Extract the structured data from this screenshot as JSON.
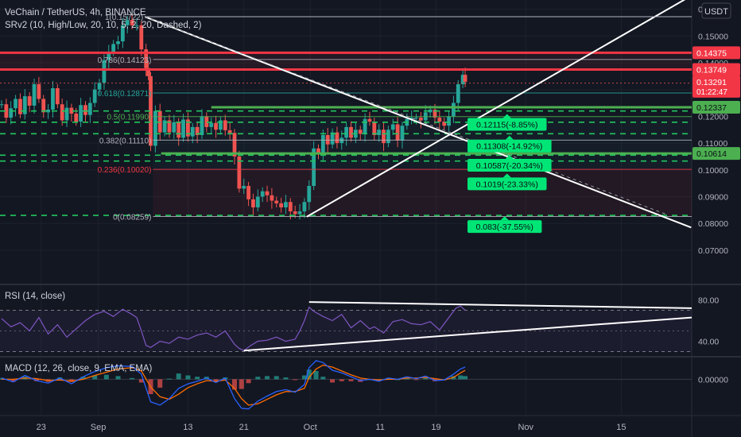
{
  "header": {
    "title": "VeChain / TetherUS, 4h, BINANCE",
    "indicator": "SRv2 (10, High/Low, 20, 10, 5, 2, 20, Dashed, 2)",
    "currency": "USDT"
  },
  "chart_data": [
    {
      "type": "candlestick",
      "name": "price",
      "price_axis_ticks": [
        "0.16000",
        "0.15000",
        "0.14000",
        "0.13000",
        "0.12000",
        "0.11000",
        "0.10000",
        "0.09000",
        "0.08000",
        "0.07000"
      ],
      "ylim": [
        0.0665,
        0.1665
      ],
      "time_axis_labels": [
        {
          "label": "23",
          "t": 34
        },
        {
          "label": "Sep",
          "t": 83
        },
        {
          "label": "13",
          "t": 160
        },
        {
          "label": "21",
          "t": 208
        },
        {
          "label": "Oct",
          "t": 265
        },
        {
          "label": "11",
          "t": 325
        },
        {
          "label": "19",
          "t": 373
        },
        {
          "label": "Nov",
          "t": 450
        },
        {
          "label": "15",
          "t": 532
        }
      ],
      "close_series": [
        [
          0,
          0.1245
        ],
        [
          4,
          0.1195
        ],
        [
          8,
          0.123
        ],
        [
          12,
          0.1265
        ],
        [
          16,
          0.1208
        ],
        [
          20,
          0.1275
        ],
        [
          24,
          0.124
        ],
        [
          28,
          0.132
        ],
        [
          32,
          0.1265
        ],
        [
          36,
          0.1215
        ],
        [
          40,
          0.1225
        ],
        [
          44,
          0.1305
        ],
        [
          48,
          0.1245
        ],
        [
          52,
          0.1185
        ],
        [
          56,
          0.1232
        ],
        [
          60,
          0.121
        ],
        [
          64,
          0.118
        ],
        [
          68,
          0.1242
        ],
        [
          72,
          0.1205
        ],
        [
          76,
          0.125
        ],
        [
          80,
          0.13
        ],
        [
          84,
          0.1325
        ],
        [
          88,
          0.141
        ],
        [
          92,
          0.144
        ],
        [
          96,
          0.147
        ],
        [
          100,
          0.148
        ],
        [
          104,
          0.154
        ],
        [
          108,
          0.156
        ],
        [
          112,
          0.154
        ],
        [
          116,
          0.154
        ],
        [
          120,
          0.145
        ],
        [
          124,
          0.138
        ],
        [
          126,
          0.135
        ],
        [
          128,
          0.109
        ],
        [
          132,
          0.122
        ],
        [
          136,
          0.114
        ],
        [
          140,
          0.1185
        ],
        [
          144,
          0.114
        ],
        [
          148,
          0.1178
        ],
        [
          152,
          0.112
        ],
        [
          156,
          0.1188
        ],
        [
          160,
          0.1125
        ],
        [
          164,
          0.116
        ],
        [
          168,
          0.113
        ],
        [
          172,
          0.12
        ],
        [
          176,
          0.116
        ],
        [
          180,
          0.1175
        ],
        [
          184,
          0.115
        ],
        [
          188,
          0.1185
        ],
        [
          192,
          0.1148
        ],
        [
          196,
          0.1138
        ],
        [
          200,
          0.105
        ],
        [
          204,
          0.093
        ],
        [
          208,
          0.094
        ],
        [
          212,
          0.089
        ],
        [
          216,
          0.086
        ],
        [
          220,
          0.09
        ],
        [
          224,
          0.092
        ],
        [
          228,
          0.0905
        ],
        [
          232,
          0.0885
        ],
        [
          236,
          0.0875
        ],
        [
          240,
          0.086
        ],
        [
          244,
          0.088
        ],
        [
          248,
          0.0845
        ],
        [
          252,
          0.0835
        ],
        [
          256,
          0.0845
        ],
        [
          260,
          0.088
        ],
        [
          264,
          0.094
        ],
        [
          268,
          0.108
        ],
        [
          272,
          0.106
        ],
        [
          276,
          0.113
        ],
        [
          280,
          0.1095
        ],
        [
          284,
          0.114
        ],
        [
          288,
          0.11
        ],
        [
          292,
          0.112
        ],
        [
          296,
          0.116
        ],
        [
          300,
          0.112
        ],
        [
          304,
          0.115
        ],
        [
          308,
          0.1135
        ],
        [
          312,
          0.119
        ],
        [
          316,
          0.118
        ],
        [
          320,
          0.113
        ],
        [
          324,
          0.115
        ],
        [
          328,
          0.11
        ],
        [
          332,
          0.115
        ],
        [
          336,
          0.117
        ],
        [
          340,
          0.111
        ],
        [
          344,
          0.1165
        ],
        [
          348,
          0.119
        ],
        [
          352,
          0.1195
        ],
        [
          356,
          0.1195
        ],
        [
          360,
          0.1185
        ],
        [
          364,
          0.1215
        ],
        [
          368,
          0.1225
        ],
        [
          372,
          0.1195
        ],
        [
          376,
          0.118
        ],
        [
          380,
          0.1165
        ],
        [
          384,
          0.12
        ],
        [
          388,
          0.125
        ],
        [
          392,
          0.132
        ],
        [
          396,
          0.1355
        ],
        [
          398,
          0.1329
        ]
      ],
      "current_price": "0.13291",
      "countdown": "01:22:47",
      "sr_levels": [
        {
          "label": "0.14375",
          "value": 0.14375,
          "color": "#f23645",
          "style": "solid"
        },
        {
          "label": "0.13749",
          "value": 0.13749,
          "color": "#f23645",
          "style": "solid"
        },
        {
          "label": "0.12337",
          "value": 0.12337,
          "color": "#4caf50",
          "style": "solid"
        },
        {
          "label": "0.10614",
          "value": 0.10614,
          "color": "#4caf50",
          "style": "solid"
        }
      ],
      "dashed_levels": [
        0.122,
        0.1178,
        0.1135,
        0.1055,
        0.1033,
        0.083
      ],
      "fib_levels": [
        {
          "label": "1(0.15722)",
          "value": 0.15722,
          "color": "#b2b5be"
        },
        {
          "label": "0.786(0.14123)",
          "value": 0.14123,
          "color": "#b2b5be"
        },
        {
          "label": "0.618(0.12871)",
          "value": 0.12871,
          "color": "#26a69a"
        },
        {
          "label": "0.5(0.11990)",
          "value": 0.1199,
          "color": "#4caf50"
        },
        {
          "label": "0.382(0.11110)",
          "value": 0.1111,
          "color": "#b2b5be"
        },
        {
          "label": "0.236(0.10020)",
          "value": 0.1002,
          "color": "#f23645"
        },
        {
          "label": "0(0.08259)",
          "value": 0.08259,
          "color": "#b2b5be"
        }
      ],
      "targets": [
        {
          "label": "0.12115(-8.85%)",
          "value": 0.12115
        },
        {
          "label": "0.11308(-14.92%)",
          "value": 0.11308
        },
        {
          "label": "0.10587(-20.34%)",
          "value": 0.10587
        },
        {
          "label": "0.1019(-23.33%)",
          "value": 0.1019
        },
        {
          "label": "0.083(-37.55%)",
          "value": 0.083
        }
      ],
      "colors": {
        "up": "#26a69a",
        "down": "#ef5350",
        "background": "#131722",
        "grid": "#2a2e39",
        "text": "#d1d4dc"
      }
    },
    {
      "type": "line",
      "name": "RSI (14, close)",
      "ticks": [
        "80.00",
        "40.00"
      ],
      "ylim": [
        25,
        95
      ],
      "band": [
        70,
        30
      ],
      "series": [
        [
          0,
          62
        ],
        [
          8,
          54
        ],
        [
          16,
          58
        ],
        [
          24,
          50
        ],
        [
          32,
          63
        ],
        [
          40,
          47
        ],
        [
          48,
          56
        ],
        [
          56,
          44
        ],
        [
          64,
          52
        ],
        [
          72,
          60
        ],
        [
          80,
          66
        ],
        [
          88,
          69
        ],
        [
          96,
          64
        ],
        [
          104,
          71
        ],
        [
          112,
          66
        ],
        [
          116,
          63
        ],
        [
          120,
          50
        ],
        [
          124,
          36
        ],
        [
          128,
          34
        ],
        [
          136,
          40
        ],
        [
          144,
          38
        ],
        [
          152,
          44
        ],
        [
          160,
          42
        ],
        [
          168,
          46
        ],
        [
          176,
          48
        ],
        [
          184,
          44
        ],
        [
          192,
          50
        ],
        [
          200,
          37
        ],
        [
          204,
          33
        ],
        [
          208,
          31
        ],
        [
          214,
          36
        ],
        [
          220,
          40
        ],
        [
          228,
          41
        ],
        [
          236,
          44
        ],
        [
          244,
          40
        ],
        [
          252,
          42
        ],
        [
          256,
          50
        ],
        [
          260,
          60
        ],
        [
          264,
          73
        ],
        [
          268,
          69
        ],
        [
          276,
          64
        ],
        [
          284,
          60
        ],
        [
          292,
          66
        ],
        [
          300,
          53
        ],
        [
          308,
          60
        ],
        [
          316,
          52
        ],
        [
          320,
          54
        ],
        [
          328,
          48
        ],
        [
          336,
          59
        ],
        [
          344,
          61
        ],
        [
          352,
          57
        ],
        [
          360,
          56
        ],
        [
          368,
          59
        ],
        [
          376,
          51
        ],
        [
          384,
          63
        ],
        [
          390,
          72
        ],
        [
          394,
          74
        ],
        [
          398,
          70
        ]
      ],
      "color": "#7e57c2"
    },
    {
      "type": "line",
      "name": "MACD (12, 26, close, 9, EMA, EMA)",
      "ticks": [
        "0.00000"
      ],
      "ylim": [
        -0.0055,
        0.0035
      ],
      "macd": [
        [
          0,
          0.0002
        ],
        [
          10,
          -0.0004
        ],
        [
          20,
          0.0006
        ],
        [
          30,
          -0.0002
        ],
        [
          40,
          -0.0006
        ],
        [
          50,
          0.0002
        ],
        [
          60,
          -0.0007
        ],
        [
          70,
          0.0004
        ],
        [
          80,
          0.0012
        ],
        [
          90,
          0.0018
        ],
        [
          100,
          0.0021
        ],
        [
          112,
          0.002
        ],
        [
          120,
          0.0008
        ],
        [
          128,
          -0.0035
        ],
        [
          136,
          -0.004
        ],
        [
          144,
          -0.003
        ],
        [
          152,
          -0.0014
        ],
        [
          160,
          -0.0007
        ],
        [
          168,
          -0.0003
        ],
        [
          176,
          0.0002
        ],
        [
          184,
          -0.0005
        ],
        [
          192,
          0.0002
        ],
        [
          200,
          -0.003
        ],
        [
          206,
          -0.0045
        ],
        [
          212,
          -0.0046
        ],
        [
          220,
          -0.0034
        ],
        [
          228,
          -0.0026
        ],
        [
          236,
          -0.0019
        ],
        [
          244,
          -0.0016
        ],
        [
          252,
          -0.002
        ],
        [
          260,
          -0.0008
        ],
        [
          264,
          0.0018
        ],
        [
          270,
          0.0029
        ],
        [
          276,
          0.0026
        ],
        [
          284,
          0.0014
        ],
        [
          292,
          0.001
        ],
        [
          300,
          0.0004
        ],
        [
          308,
          -0.0002
        ],
        [
          316,
          0.0
        ],
        [
          324,
          -0.0003
        ],
        [
          332,
          0.0002
        ],
        [
          340,
          0.0
        ],
        [
          348,
          0.0004
        ],
        [
          356,
          0.0001
        ],
        [
          364,
          0.0005
        ],
        [
          372,
          -0.0002
        ],
        [
          380,
          -0.0001
        ],
        [
          388,
          0.0008
        ],
        [
          394,
          0.0016
        ],
        [
          398,
          0.0019
        ]
      ],
      "signal": [
        [
          0,
          0.0
        ],
        [
          10,
          0.0
        ],
        [
          20,
          0.0002
        ],
        [
          30,
          0.0001
        ],
        [
          40,
          -0.0002
        ],
        [
          50,
          -0.0001
        ],
        [
          60,
          -0.0003
        ],
        [
          70,
          0.0
        ],
        [
          80,
          0.0006
        ],
        [
          90,
          0.0011
        ],
        [
          100,
          0.0016
        ],
        [
          112,
          0.0018
        ],
        [
          120,
          0.0013
        ],
        [
          128,
          -0.0012
        ],
        [
          136,
          -0.0027
        ],
        [
          144,
          -0.0031
        ],
        [
          152,
          -0.0023
        ],
        [
          160,
          -0.0013
        ],
        [
          168,
          -0.0007
        ],
        [
          176,
          -0.0002
        ],
        [
          184,
          -0.0003
        ],
        [
          192,
          -0.0001
        ],
        [
          200,
          -0.0014
        ],
        [
          206,
          -0.003
        ],
        [
          212,
          -0.004
        ],
        [
          220,
          -0.0038
        ],
        [
          228,
          -0.0031
        ],
        [
          236,
          -0.0024
        ],
        [
          244,
          -0.0019
        ],
        [
          252,
          -0.0019
        ],
        [
          260,
          -0.0014
        ],
        [
          264,
          0.0003
        ],
        [
          270,
          0.0016
        ],
        [
          276,
          0.0022
        ],
        [
          284,
          0.0019
        ],
        [
          292,
          0.0013
        ],
        [
          300,
          0.0007
        ],
        [
          308,
          0.0002
        ],
        [
          316,
          0.0
        ],
        [
          324,
          -0.0001
        ],
        [
          332,
          0.0
        ],
        [
          340,
          0.0
        ],
        [
          348,
          0.0002
        ],
        [
          356,
          0.0002
        ],
        [
          364,
          0.0003
        ],
        [
          372,
          0.0001
        ],
        [
          380,
          -0.0001
        ],
        [
          388,
          0.0003
        ],
        [
          394,
          0.001
        ],
        [
          398,
          0.0014
        ]
      ],
      "macd_color": "#2962ff",
      "signal_color": "#ff6d00"
    }
  ]
}
